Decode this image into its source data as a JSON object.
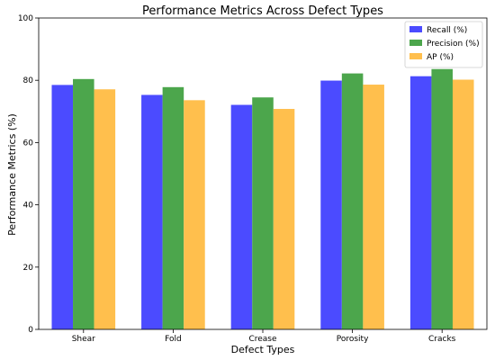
{
  "chart_data": {
    "type": "bar",
    "title": "Performance Metrics Across Defect Types",
    "xlabel": "Defect Types",
    "ylabel": "Performance Metrics (%)",
    "categories": [
      "Shear",
      "Fold",
      "Crease",
      "Porosity",
      "Cracks"
    ],
    "ylim": [
      0,
      100
    ],
    "yticks": [
      0,
      20,
      40,
      60,
      80,
      100
    ],
    "grid": false,
    "legend_position": "top-right",
    "series": [
      {
        "name": "Recall (%)",
        "color": "#4b4bff",
        "values": [
          78.5,
          75.3,
          72.1,
          79.9,
          81.3
        ]
      },
      {
        "name": "Precision (%)",
        "color": "#4ca64c",
        "values": [
          80.4,
          77.8,
          74.5,
          82.2,
          83.6
        ]
      },
      {
        "name": "AP (%)",
        "color": "#ffbf4d",
        "values": [
          77.1,
          73.6,
          70.8,
          78.6,
          80.2
        ]
      }
    ]
  }
}
